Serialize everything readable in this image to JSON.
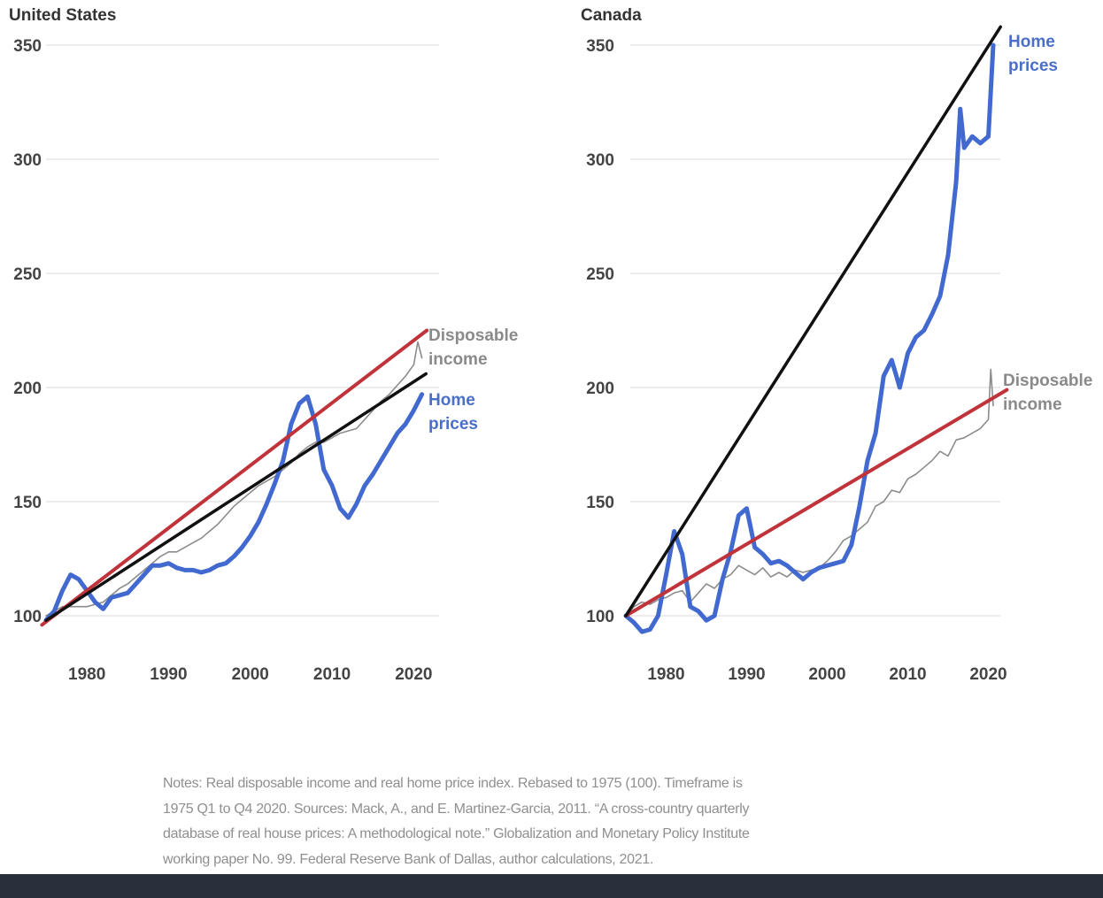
{
  "colors": {
    "home_prices": "#4169cf",
    "disposable_income": "#8c8c8c",
    "trend_red": "#c0333a",
    "trend_black": "#111111",
    "grid": "#e6e6e6",
    "footer": "#2a2f3c"
  },
  "notes": {
    "lines": [
      "Notes: Real disposable income and real home price index. Rebased to 1975 (100). Timeframe is",
      "1975 Q1 to Q4 2020. Sources: Mack, A., and E. Martinez-Garcia, 2011. “A cross-country quarterly",
      "database of real house prices: A methodological note.” Globalization and Monetary Policy Institute",
      "working paper No. 99. Federal Reserve Bank of Dallas, author calculations, 2021."
    ]
  },
  "chart_data": [
    {
      "type": "line",
      "title": "United States",
      "xlabel": "",
      "ylabel": "",
      "xlim": [
        1974.5,
        2024
      ],
      "ylim": [
        90,
        355
      ],
      "yticks": [
        100,
        150,
        200,
        250,
        300,
        350
      ],
      "xticks": [
        1980,
        1990,
        2000,
        2010,
        2020
      ],
      "grid": true,
      "series_labels": {
        "disposable_income": [
          "Disposable",
          "income"
        ],
        "home_prices": [
          "Home",
          "prices"
        ]
      },
      "series": [
        {
          "name": "Disposable income",
          "role": "disposable_income",
          "x": [
            1975,
            1976,
            1977,
            1978,
            1979,
            1980,
            1981,
            1982,
            1983,
            1984,
            1985,
            1986,
            1987,
            1988,
            1989,
            1990,
            1991,
            1992,
            1993,
            1994,
            1995,
            1996,
            1997,
            1998,
            1999,
            2000,
            2001,
            2002,
            2003,
            2004,
            2005,
            2006,
            2007,
            2008,
            2009,
            2010,
            2011,
            2012,
            2013,
            2014,
            2015,
            2016,
            2017,
            2018,
            2019,
            2020,
            2020.5,
            2021
          ],
          "values": [
            100,
            102,
            104,
            104,
            104,
            104,
            105,
            106,
            109,
            112,
            114,
            117,
            120,
            123,
            126,
            128,
            128,
            130,
            132,
            134,
            137,
            140,
            144,
            148,
            151,
            154,
            157,
            159,
            161,
            164,
            167,
            171,
            174,
            176,
            176,
            178,
            180,
            181,
            182,
            186,
            190,
            194,
            197,
            201,
            205,
            210,
            220,
            213
          ]
        },
        {
          "name": "Home prices",
          "role": "home_prices",
          "x": [
            1975,
            1976,
            1977,
            1978,
            1979,
            1980,
            1981,
            1982,
            1983,
            1984,
            1985,
            1986,
            1987,
            1988,
            1989,
            1990,
            1991,
            1992,
            1993,
            1994,
            1995,
            1996,
            1997,
            1998,
            1999,
            2000,
            2001,
            2002,
            2003,
            2004,
            2005,
            2006,
            2007,
            2008,
            2009,
            2010,
            2011,
            2012,
            2013,
            2014,
            2015,
            2016,
            2017,
            2018,
            2019,
            2020,
            2021
          ],
          "values": [
            98,
            102,
            111,
            118,
            116,
            111,
            106,
            103,
            108,
            109,
            110,
            114,
            118,
            122,
            122,
            123,
            121,
            120,
            120,
            119,
            120,
            122,
            123,
            126,
            130,
            135,
            141,
            149,
            158,
            168,
            184,
            193,
            196,
            184,
            164,
            157,
            147,
            143,
            149,
            157,
            162,
            168,
            174,
            180,
            184,
            190,
            197
          ]
        },
        {
          "name": "Disposable income trend",
          "role": "trend_red",
          "x": [
            1974.5,
            2021.6
          ],
          "values": [
            96,
            225
          ]
        },
        {
          "name": "Home prices trend",
          "role": "trend_black",
          "x": [
            1975,
            2021.5
          ],
          "values": [
            98,
            206
          ]
        }
      ]
    },
    {
      "type": "line",
      "title": "Canada",
      "xlabel": "",
      "ylabel": "",
      "xlim": [
        1974.5,
        2024
      ],
      "ylim": [
        90,
        360
      ],
      "yticks": [
        100,
        150,
        200,
        250,
        300,
        350
      ],
      "xticks": [
        1980,
        1990,
        2000,
        2010,
        2020
      ],
      "grid": true,
      "series_labels": {
        "disposable_income": [
          "Disposable",
          "income"
        ],
        "home_prices": [
          "Home",
          "prices"
        ]
      },
      "series": [
        {
          "name": "Disposable income",
          "role": "disposable_income",
          "x": [
            1975,
            1976,
            1977,
            1978,
            1979,
            1980,
            1981,
            1982,
            1983,
            1984,
            1985,
            1986,
            1987,
            1988,
            1989,
            1990,
            1991,
            1992,
            1993,
            1994,
            1995,
            1996,
            1997,
            1998,
            1999,
            2000,
            2001,
            2002,
            2003,
            2004,
            2005,
            2006,
            2007,
            2008,
            2009,
            2010,
            2011,
            2012,
            2013,
            2014,
            2015,
            2016,
            2017,
            2018,
            2019,
            2020,
            2020.3,
            2020.6
          ],
          "values": [
            100,
            104,
            106,
            105,
            107,
            108,
            110,
            111,
            106,
            110,
            114,
            112,
            116,
            118,
            122,
            120,
            118,
            121,
            117,
            119,
            117,
            120,
            119,
            120,
            121,
            124,
            128,
            133,
            135,
            138,
            141,
            148,
            150,
            155,
            154,
            160,
            162,
            165,
            168,
            172,
            170,
            177,
            178,
            180,
            182,
            186,
            208,
            192
          ]
        },
        {
          "name": "Home prices",
          "role": "home_prices",
          "x": [
            1975,
            1976,
            1977,
            1978,
            1979,
            1980,
            1981,
            1982,
            1983,
            1984,
            1985,
            1986,
            1987,
            1988,
            1989,
            1990,
            1991,
            1992,
            1993,
            1994,
            1995,
            1996,
            1997,
            1998,
            1999,
            2000,
            2001,
            2002,
            2003,
            2004,
            2005,
            2006,
            2007,
            2008,
            2009,
            2010,
            2011,
            2012,
            2013,
            2014,
            2015,
            2016,
            2016.5,
            2017,
            2018,
            2019,
            2020,
            2020.6
          ],
          "values": [
            100,
            97,
            93,
            94,
            100,
            118,
            137,
            127,
            104,
            102,
            98,
            100,
            116,
            128,
            144,
            147,
            130,
            127,
            123,
            124,
            122,
            119,
            116,
            119,
            121,
            122,
            123,
            124,
            131,
            148,
            168,
            180,
            205,
            212,
            200,
            215,
            222,
            225,
            232,
            240,
            258,
            290,
            322,
            305,
            310,
            307,
            310,
            350
          ]
        },
        {
          "name": "Disposable income trend",
          "role": "trend_red",
          "x": [
            1975,
            2022.3
          ],
          "values": [
            100,
            199
          ]
        },
        {
          "name": "Home prices trend",
          "role": "trend_black",
          "x": [
            1975,
            2021.5
          ],
          "values": [
            100,
            358
          ]
        }
      ]
    }
  ]
}
